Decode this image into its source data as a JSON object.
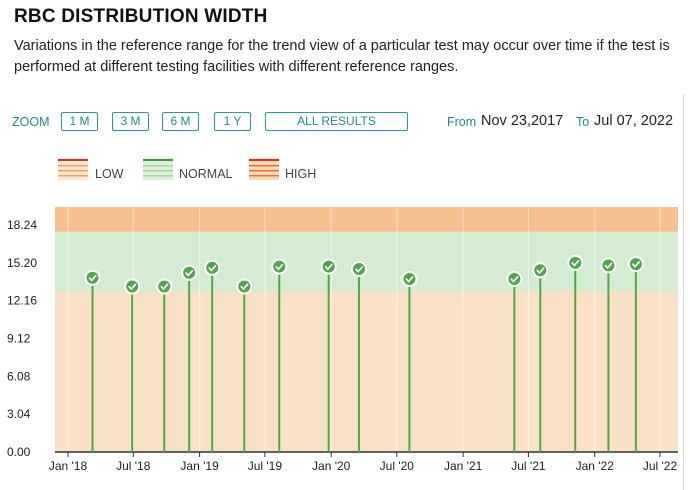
{
  "header": {
    "title": "RBC DISTRIBUTION WIDTH",
    "description": "Variations in the reference range for the trend view of a particular test may occur over time if the test is performed at different testing facilities with different reference ranges."
  },
  "toolbar": {
    "zoom_label": "ZOOM",
    "zoom_buttons": [
      "1 M",
      "3 M",
      "6 M",
      "1 Y",
      "ALL RESULTS"
    ],
    "from_label": "From",
    "from_value": "Nov 23,2017",
    "to_label": "To",
    "to_value": "Jul 07, 2022"
  },
  "legend": {
    "items": [
      {
        "label": "LOW"
      },
      {
        "label": "NORMAL"
      },
      {
        "label": "HIGH"
      }
    ]
  },
  "colors": {
    "accent": "#1f8a8f",
    "high_band": "#f9c08f",
    "normal_band": "#d4ecd1",
    "low_band": "#fbe0c8",
    "point": "#4ea84a",
    "stem": "#4ea84a"
  },
  "chart_data": {
    "type": "scatter",
    "title": "",
    "xlabel": "",
    "ylabel": "",
    "ylim": [
      0,
      20.5
    ],
    "y_ticks": [
      "0.00",
      "3.04",
      "6.08",
      "9.12",
      "12.16",
      "15.20",
      "18.24"
    ],
    "x_ticks": [
      "Jan '18",
      "Jul '18",
      "Jan '19",
      "Jul '19",
      "Jan '20",
      "Jul '20",
      "Jan '21",
      "Jul '21",
      "Jan '22",
      "Jul '22"
    ],
    "x_tick_dates": [
      "2018-01-01",
      "2018-07-01",
      "2019-01-01",
      "2019-07-01",
      "2020-01-01",
      "2020-07-01",
      "2021-01-01",
      "2021-07-01",
      "2022-01-01",
      "2022-07-01"
    ],
    "x_range": [
      "2017-11-23",
      "2022-07-07"
    ],
    "reference_ranges": {
      "normal": [
        12.9,
        17.7
      ],
      "high_from": 17.7
    },
    "grid": "vertical",
    "points": [
      {
        "x": "2018-03-10",
        "y": 14.0
      },
      {
        "x": "2018-06-28",
        "y": 13.3
      },
      {
        "x": "2018-09-25",
        "y": 13.3
      },
      {
        "x": "2018-12-03",
        "y": 14.4
      },
      {
        "x": "2019-02-05",
        "y": 14.8
      },
      {
        "x": "2019-05-05",
        "y": 13.3
      },
      {
        "x": "2019-08-10",
        "y": 14.9
      },
      {
        "x": "2019-12-25",
        "y": 14.9
      },
      {
        "x": "2020-03-18",
        "y": 14.7
      },
      {
        "x": "2020-08-05",
        "y": 13.9
      },
      {
        "x": "2021-05-23",
        "y": 13.9
      },
      {
        "x": "2021-08-03",
        "y": 14.6
      },
      {
        "x": "2021-11-08",
        "y": 15.2
      },
      {
        "x": "2022-02-08",
        "y": 15.0
      },
      {
        "x": "2022-04-25",
        "y": 15.1
      }
    ]
  }
}
